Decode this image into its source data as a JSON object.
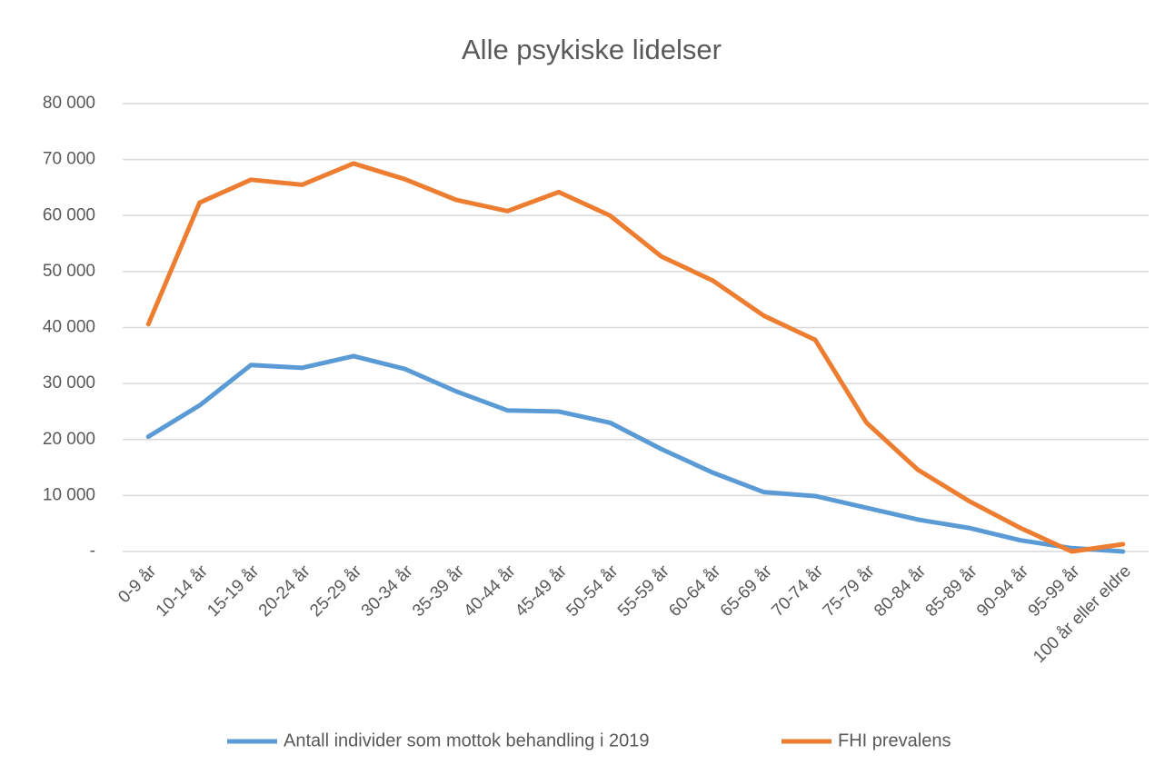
{
  "chart_data": {
    "type": "line",
    "title": "Alle psykiske lidelser",
    "categories": [
      "0-9 år",
      "10-14 år",
      "15-19 år",
      "20-24 år",
      "25-29 år",
      "30-34 år",
      "35-39 år",
      "40-44 år",
      "45-49 år",
      "50-54 år",
      "55-59 år",
      "60-64 år",
      "65-69 år",
      "70-74 år",
      "75-79 år",
      "80-84 år",
      "85-89 år",
      "90-94 år",
      "95-99 år",
      "100 år eller eldre"
    ],
    "series": [
      {
        "name": "Antall individer som mottok behandling i 2019",
        "color": "#5b9bd5",
        "values": [
          20500,
          26100,
          33300,
          32800,
          34900,
          32600,
          28600,
          25200,
          25000,
          23000,
          18300,
          14100,
          10600,
          9900,
          7800,
          5700,
          4200,
          2000,
          600,
          0
        ]
      },
      {
        "name": "FHI prevalens",
        "color": "#ed7d31",
        "values": [
          40600,
          62300,
          66400,
          65500,
          69300,
          66500,
          62800,
          60800,
          64200,
          60000,
          52700,
          48400,
          42100,
          37800,
          23000,
          14600,
          9000,
          4200,
          0,
          1300
        ]
      }
    ],
    "ylim": [
      0,
      80000
    ],
    "yticks": [
      {
        "value": 0,
        "label": "-"
      },
      {
        "value": 10000,
        "label": "10 000"
      },
      {
        "value": 20000,
        "label": "20 000"
      },
      {
        "value": 30000,
        "label": "30 000"
      },
      {
        "value": 40000,
        "label": "40 000"
      },
      {
        "value": 50000,
        "label": "50 000"
      },
      {
        "value": 60000,
        "label": "60 000"
      },
      {
        "value": 70000,
        "label": "70 000"
      },
      {
        "value": 80000,
        "label": "80 000"
      }
    ],
    "grid": true,
    "legend": "bottom"
  }
}
